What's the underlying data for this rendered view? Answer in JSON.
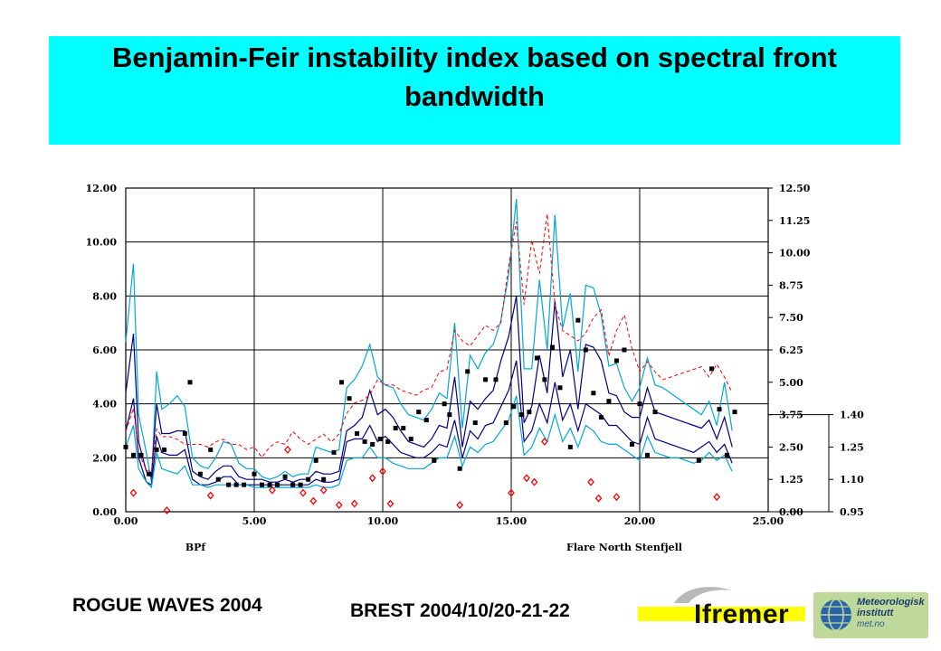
{
  "header": {
    "title_line1": "Benjamin-Feir instability index based on spectral front",
    "title_line2": "bandwidth"
  },
  "footer": {
    "event": "ROGUE WAVES 2004",
    "place_date": "BREST  2004/10/20-21-22"
  },
  "logos": {
    "ifremer": "Ifremer",
    "metno_line1": "Meteorologisk",
    "metno_line2": "institutt",
    "metno_line3": "met.no"
  },
  "colors": {
    "title_bg": "#00ffff",
    "cyan_band": "#00a8d8",
    "navy_band": "#000080",
    "red_dashed": "#ff0000",
    "markers": "#000000",
    "red_diamonds": "#ff0000",
    "ifremer_bar": "#ffff00",
    "metno_bg": "#bfd99a"
  },
  "chart_data": {
    "type": "line",
    "xlabel": "BPf",
    "xlabel_right": "Flare North Stenfjell",
    "xlim": [
      0,
      25
    ],
    "x_ticks": [
      "0.00",
      "5.00",
      "10.00",
      "15.00",
      "20.00",
      "25.00"
    ],
    "ylim": [
      0,
      12
    ],
    "y_ticks": [
      "0.00",
      "2.00",
      "4.00",
      "6.00",
      "8.00",
      "10.00",
      "12.00"
    ],
    "y2lim": [
      0,
      12.5
    ],
    "y2_ticks": [
      "0.00",
      "1.25",
      "2.50",
      "3.75",
      "5.00",
      "6.25",
      "7.50",
      "8.75",
      "10.00",
      "11.25",
      "12.50"
    ],
    "y3lim": [
      0.95,
      1.4
    ],
    "y3_ticks": [
      "0.95",
      "1.10",
      "1.25",
      "1.40"
    ],
    "grid": true,
    "x": [
      0,
      0.3,
      0.5,
      0.8,
      1.0,
      1.2,
      1.4,
      1.7,
      2.0,
      2.3,
      2.6,
      2.9,
      3.2,
      3.5,
      3.8,
      4.1,
      4.4,
      4.7,
      5.0,
      5.3,
      5.6,
      5.9,
      6.2,
      6.5,
      6.8,
      7.1,
      7.4,
      7.7,
      8.0,
      8.3,
      8.6,
      8.9,
      9.2,
      9.5,
      9.8,
      10.1,
      10.4,
      10.7,
      11.0,
      11.3,
      11.6,
      11.9,
      12.2,
      12.5,
      12.8,
      13.1,
      13.4,
      13.7,
      14.0,
      14.3,
      14.6,
      14.9,
      15.2,
      15.5,
      15.8,
      16.1,
      16.4,
      16.7,
      17.0,
      17.3,
      17.6,
      17.9,
      18.2,
      18.5,
      18.8,
      19.1,
      19.4,
      19.7,
      20.0,
      20.3,
      20.6,
      20.9,
      21.2,
      21.5,
      21.8,
      22.1,
      22.4,
      22.7,
      23.0,
      23.3,
      23.6
    ],
    "series": [
      {
        "style": "cyan-upper",
        "values": [
          6.3,
          9.2,
          3.6,
          2.2,
          1.1,
          5.2,
          3.8,
          4.0,
          4.3,
          3.9,
          2.0,
          1.7,
          1.6,
          2.0,
          2.6,
          2.5,
          1.8,
          1.6,
          1.6,
          1.3,
          1.2,
          1.3,
          1.5,
          1.3,
          1.4,
          1.4,
          2.4,
          2.3,
          2.2,
          2.3,
          4.6,
          4.9,
          5.4,
          6.2,
          5.0,
          4.7,
          4.6,
          4.0,
          3.6,
          3.5,
          3.4,
          3.8,
          4.4,
          4.2,
          7.0,
          3.1,
          5.8,
          5.3,
          5.9,
          6.2,
          7.1,
          8.8,
          11.6,
          5.3,
          5.3,
          8.6,
          6.0,
          11.0,
          6.8,
          8.1,
          5.2,
          8.4,
          8.3,
          7.3,
          5.4,
          5.5,
          4.6,
          4.1,
          4.6,
          5.7,
          4.7,
          4.6,
          4.4,
          4.2,
          4.0,
          3.8,
          3.6,
          4.1,
          3.2,
          4.8,
          3.0
        ]
      },
      {
        "style": "navy-upper",
        "values": [
          4.4,
          6.6,
          2.6,
          1.5,
          1.3,
          4.0,
          2.9,
          2.9,
          3.0,
          3.0,
          1.5,
          1.3,
          1.2,
          1.5,
          1.7,
          1.7,
          1.3,
          1.2,
          1.2,
          1.2,
          1.1,
          1.1,
          1.2,
          1.1,
          1.2,
          1.2,
          1.5,
          1.4,
          1.4,
          1.5,
          3.0,
          3.2,
          3.5,
          4.5,
          3.6,
          3.8,
          3.5,
          3.0,
          2.6,
          2.5,
          2.4,
          2.7,
          3.2,
          3.1,
          5.0,
          2.4,
          4.1,
          3.8,
          4.2,
          4.5,
          5.6,
          6.5,
          8.0,
          3.3,
          3.9,
          5.8,
          4.4,
          7.8,
          5.0,
          6.0,
          3.8,
          6.2,
          6.1,
          5.6,
          4.4,
          4.3,
          3.7,
          3.5,
          3.5,
          4.6,
          3.7,
          3.6,
          3.5,
          3.4,
          3.3,
          3.2,
          3.1,
          3.4,
          2.7,
          3.5,
          2.4
        ]
      },
      {
        "style": "navy-lower",
        "values": [
          3.0,
          4.2,
          2.0,
          1.1,
          1.0,
          2.8,
          2.2,
          2.1,
          2.1,
          2.3,
          1.2,
          1.0,
          1.0,
          1.1,
          1.3,
          1.3,
          1.0,
          1.0,
          1.0,
          1.0,
          1.0,
          1.0,
          1.0,
          1.0,
          1.0,
          1.0,
          1.2,
          1.1,
          1.1,
          1.2,
          2.6,
          2.7,
          2.7,
          3.2,
          2.6,
          2.8,
          2.5,
          2.2,
          2.1,
          2.0,
          2.0,
          2.2,
          2.5,
          2.4,
          3.4,
          2.0,
          3.0,
          2.7,
          3.2,
          3.3,
          3.9,
          4.5,
          5.6,
          2.6,
          3.0,
          4.0,
          3.3,
          4.8,
          3.4,
          4.0,
          3.0,
          4.0,
          3.8,
          3.6,
          3.2,
          3.2,
          2.9,
          2.6,
          2.5,
          3.5,
          2.7,
          2.6,
          2.5,
          2.4,
          2.3,
          2.2,
          2.4,
          2.6,
          2.2,
          2.5,
          1.8
        ]
      },
      {
        "style": "cyan-lower",
        "values": [
          2.4,
          3.2,
          1.6,
          1.1,
          0.9,
          2.2,
          1.6,
          1.5,
          1.4,
          1.7,
          1.0,
          1.0,
          0.9,
          1.0,
          1.0,
          1.0,
          1.0,
          1.0,
          0.9,
          0.9,
          0.9,
          0.9,
          0.9,
          0.9,
          0.9,
          0.9,
          1.0,
          0.9,
          0.9,
          1.0,
          1.9,
          2.0,
          2.0,
          2.4,
          2.0,
          2.0,
          1.8,
          1.7,
          1.6,
          1.6,
          1.6,
          1.8,
          2.0,
          2.0,
          2.8,
          1.7,
          2.4,
          2.2,
          2.5,
          2.6,
          3.0,
          3.4,
          4.3,
          2.1,
          2.4,
          3.1,
          2.6,
          3.6,
          2.6,
          3.1,
          2.4,
          3.2,
          3.0,
          2.6,
          2.5,
          2.5,
          2.3,
          2.1,
          1.9,
          2.8,
          2.2,
          2.1,
          2.0,
          2.0,
          1.9,
          1.8,
          1.9,
          2.2,
          1.9,
          2.1,
          1.5
        ]
      },
      {
        "style": "red-dashed",
        "axis": "right",
        "values": [
          3.1,
          4.0,
          2.3,
          1.6,
          1.6,
          3.2,
          2.9,
          2.9,
          2.8,
          2.6,
          2.6,
          2.6,
          2.5,
          2.7,
          2.8,
          2.6,
          2.6,
          2.4,
          2.5,
          2.1,
          2.5,
          2.7,
          2.6,
          3.1,
          2.8,
          2.6,
          2.8,
          3.0,
          2.7,
          3.0,
          3.8,
          4.2,
          4.3,
          4.5,
          5.1,
          4.9,
          4.9,
          4.7,
          4.6,
          4.5,
          4.7,
          4.8,
          5.4,
          5.5,
          7.0,
          6.6,
          6.4,
          6.8,
          7.2,
          7.0,
          7.3,
          9.5,
          11.2,
          8.0,
          10.5,
          9.2,
          11.5,
          8.0,
          7.0,
          6.8,
          6.6,
          6.9,
          7.5,
          7.8,
          6.0,
          7.0,
          7.6,
          6.3,
          5.4,
          5.8,
          5.4,
          5.1,
          5.2,
          5.3,
          5.4,
          5.5,
          5.6,
          5.2,
          5.7,
          5.2,
          4.6
        ]
      }
    ],
    "markers": {
      "style": "black-squares",
      "x": [
        0.0,
        0.3,
        0.6,
        0.9,
        1.2,
        1.5,
        2.3,
        2.5,
        2.9,
        3.3,
        3.6,
        4.0,
        4.3,
        4.6,
        5.0,
        5.3,
        5.6,
        5.9,
        6.2,
        6.5,
        6.8,
        7.1,
        7.4,
        7.7,
        8.1,
        8.4,
        8.7,
        9.0,
        9.3,
        9.6,
        9.9,
        10.2,
        10.5,
        10.8,
        11.1,
        11.4,
        11.7,
        12.0,
        12.4,
        12.6,
        13.0,
        13.3,
        13.6,
        14.0,
        14.4,
        14.8,
        15.1,
        15.4,
        15.7,
        16.0,
        16.3,
        16.6,
        16.9,
        17.3,
        17.6,
        17.9,
        18.2,
        18.5,
        18.8,
        19.1,
        19.4,
        19.7,
        20.0,
        20.3,
        20.6,
        22.3,
        22.8,
        23.1,
        23.4,
        23.7
      ],
      "values": [
        2.4,
        2.1,
        2.1,
        1.4,
        2.3,
        2.3,
        2.9,
        4.8,
        1.4,
        2.3,
        1.2,
        1.0,
        1.0,
        1.0,
        1.4,
        1.0,
        1.0,
        1.0,
        1.3,
        1.0,
        1.0,
        1.2,
        1.9,
        1.2,
        2.2,
        4.8,
        4.2,
        2.9,
        2.6,
        2.5,
        2.7,
        2.6,
        3.1,
        3.1,
        2.7,
        3.7,
        3.4,
        1.9,
        4.0,
        3.6,
        1.6,
        5.2,
        3.3,
        4.9,
        4.9,
        3.3,
        3.9,
        3.6,
        3.7,
        5.7,
        4.9,
        6.1,
        4.6,
        2.4,
        7.1,
        6.0,
        4.4,
        3.5,
        4.1,
        5.6,
        6.0,
        2.5,
        4.0,
        2.1,
        3.7,
        1.9,
        5.3,
        3.8,
        2.1,
        3.7
      ]
    },
    "diamonds": {
      "style": "red-open-diamonds",
      "x": [
        0.3,
        1.6,
        3.3,
        5.7,
        6.3,
        6.9,
        7.3,
        7.7,
        8.3,
        8.9,
        9.6,
        10.0,
        10.3,
        13.0,
        15.0,
        15.6,
        15.9,
        16.3,
        18.1,
        18.4,
        19.1,
        23.0
      ],
      "values": [
        0.7,
        0.05,
        0.6,
        0.8,
        2.3,
        0.7,
        0.4,
        0.8,
        0.25,
        0.3,
        1.25,
        1.5,
        0.3,
        0.25,
        0.7,
        1.25,
        1.1,
        2.6,
        1.1,
        0.5,
        0.55,
        0.55
      ]
    }
  }
}
